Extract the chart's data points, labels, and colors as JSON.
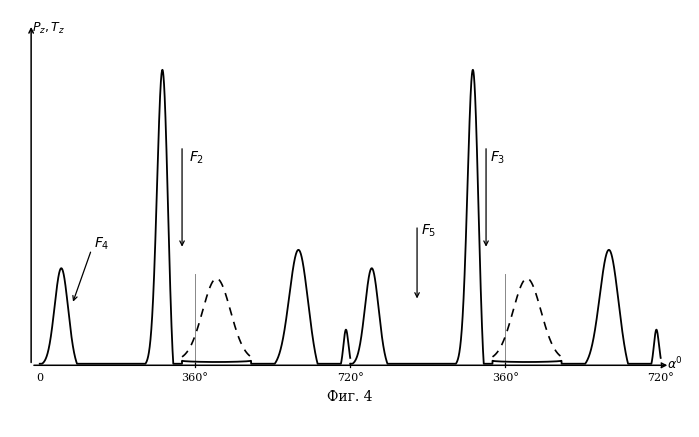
{
  "background_color": "#ffffff",
  "line_color": "#000000",
  "dashed_color": "#000000",
  "vline_color": "#888888",
  "text_color": "#000000",
  "xlim": [
    -25,
    1470
  ],
  "ylim": [
    -0.09,
    1.15
  ],
  "tick_positions": [
    0,
    360,
    720,
    1080,
    1440
  ],
  "tick_labels": [
    "0",
    "360°",
    "720°",
    "360°",
    "720°"
  ],
  "vlines": [
    360,
    1080
  ],
  "caption": "Фиг. 4"
}
